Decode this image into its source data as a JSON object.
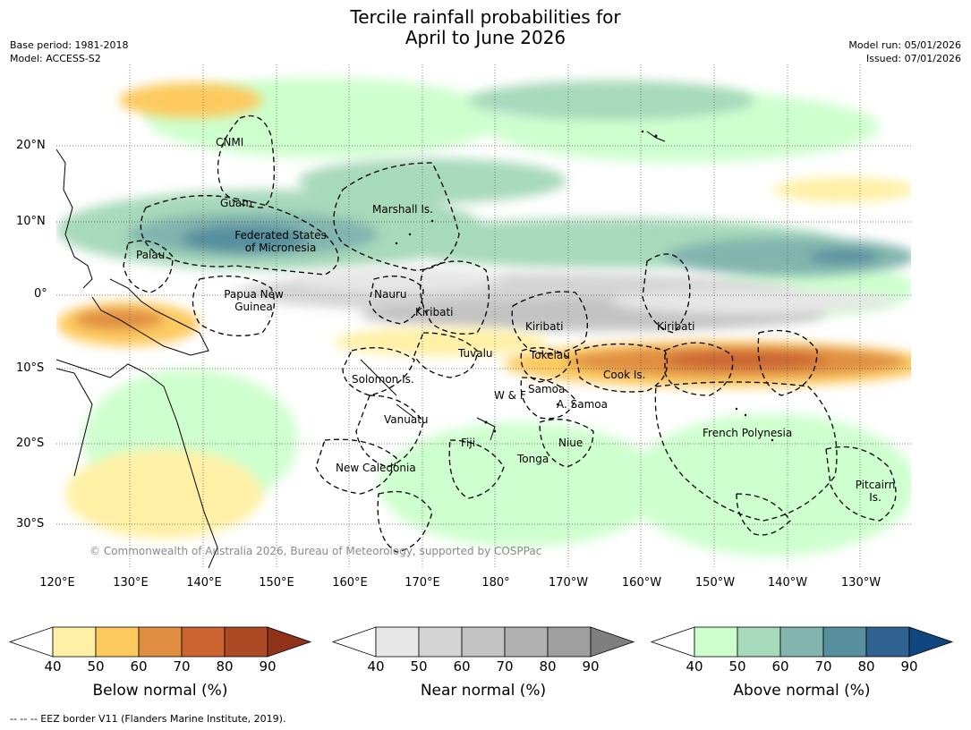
{
  "title_line1": "Tercile rainfall probabilities for",
  "title_line2": "April to June 2026",
  "meta": {
    "base_period": "Base period: 1981-2018",
    "model": "Model: ACCESS-S2",
    "model_run": "Model run: 05/01/2026",
    "issued": "Issued: 07/01/2026"
  },
  "axes": {
    "lat_labels": [
      "20°N",
      "10°N",
      "0°",
      "10°S",
      "20°S",
      "30°S"
    ],
    "lon_labels": [
      "120°E",
      "130°E",
      "140°E",
      "150°E",
      "160°E",
      "170°E",
      "180°",
      "170°W",
      "160°W",
      "150°W",
      "140°W",
      "130°W"
    ]
  },
  "places": {
    "cnmi": "CNMI",
    "guam": "Guam",
    "marshall": "Marshall Is.",
    "fsm1": "Federated States",
    "fsm2": "of Micronesia",
    "palau": "Palau",
    "png1": "Papua New",
    "png2": "Guinea",
    "nauru": "Nauru",
    "kiribati1": "Kiribati",
    "kiribati2": "Kiribati",
    "kiribati3": "Kiribati",
    "tuvalu": "Tuvalu",
    "tokelau": "Tokelau",
    "cook": "Cook Is.",
    "solomon": "Solomon Is.",
    "wf": "W & F",
    "samoa": "Samoa",
    "asamoa": "A. Samoa",
    "vanuatu": "Vanuatu",
    "fiji": "Fiji",
    "niue": "Niue",
    "tonga": "Tonga",
    "newcal": "New Caledonia",
    "frpoly": "French Polynesia",
    "pitcairn1": "Pitcairn",
    "pitcairn2": "Is."
  },
  "copyright": "© Commonwealth of Australia 2026, Bureau of Meteorology, supported by COSPPac",
  "colorbars": [
    {
      "label": "Below normal (%)",
      "ticks": [
        "40",
        "50",
        "60",
        "70",
        "80",
        "90"
      ],
      "colors": [
        "#fff0a6",
        "#fdca60",
        "#e08f42",
        "#cb6431",
        "#ac4a26"
      ],
      "end_color": "#8f3219"
    },
    {
      "label": "Near normal (%)",
      "ticks": [
        "40",
        "50",
        "60",
        "70",
        "80",
        "90"
      ],
      "colors": [
        "#e7e7e7",
        "#d4d4d4",
        "#c3c3c3",
        "#b1b1b1",
        "#9f9f9f"
      ],
      "end_color": "#7f7f7f"
    },
    {
      "label": "Above normal (%)",
      "ticks": [
        "40",
        "50",
        "60",
        "70",
        "80",
        "90"
      ],
      "colors": [
        "#ccffcc",
        "#a7d9bb",
        "#82b5ae",
        "#578f9e",
        "#2f6191"
      ],
      "end_color": "#0f4680"
    }
  ],
  "footer": "-- -- -- EEZ border V11 (Flanders Marine Institute, 2019)."
}
